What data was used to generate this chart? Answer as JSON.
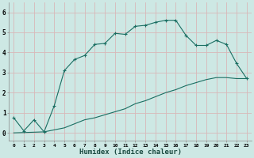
{
  "xlabel": "Humidex (Indice chaleur)",
  "ylabel": "",
  "background_color": "#cde8e4",
  "grid_color": "#d8b8b8",
  "line_color": "#1a6e62",
  "x_ticks": [
    0,
    1,
    2,
    3,
    4,
    5,
    6,
    7,
    8,
    9,
    10,
    11,
    12,
    13,
    14,
    15,
    16,
    17,
    18,
    19,
    20,
    21,
    22,
    23
  ],
  "y_ticks": [
    0,
    1,
    2,
    3,
    4,
    5,
    6
  ],
  "ylim": [
    -0.4,
    6.5
  ],
  "xlim": [
    -0.5,
    23.5
  ],
  "series1_x": [
    0,
    1,
    2,
    3,
    4,
    5,
    6,
    7,
    8,
    9,
    10,
    11,
    12,
    13,
    14,
    15,
    16,
    17,
    18,
    19,
    20,
    21,
    22,
    23
  ],
  "series1_y": [
    0.75,
    0.1,
    0.65,
    0.05,
    1.35,
    3.1,
    3.65,
    3.85,
    4.4,
    4.45,
    4.95,
    4.9,
    5.3,
    5.35,
    5.5,
    5.6,
    5.6,
    4.85,
    4.35,
    4.35,
    4.6,
    4.4,
    3.45,
    2.7
  ],
  "series2_x": [
    0,
    3,
    4,
    5,
    6,
    7,
    8,
    9,
    10,
    11,
    12,
    13,
    14,
    15,
    16,
    17,
    18,
    19,
    20,
    21,
    22,
    23
  ],
  "series2_y": [
    0.0,
    0.05,
    0.15,
    0.25,
    0.45,
    0.65,
    0.75,
    0.9,
    1.05,
    1.2,
    1.45,
    1.6,
    1.8,
    2.0,
    2.15,
    2.35,
    2.5,
    2.65,
    2.75,
    2.75,
    2.7,
    2.7
  ]
}
